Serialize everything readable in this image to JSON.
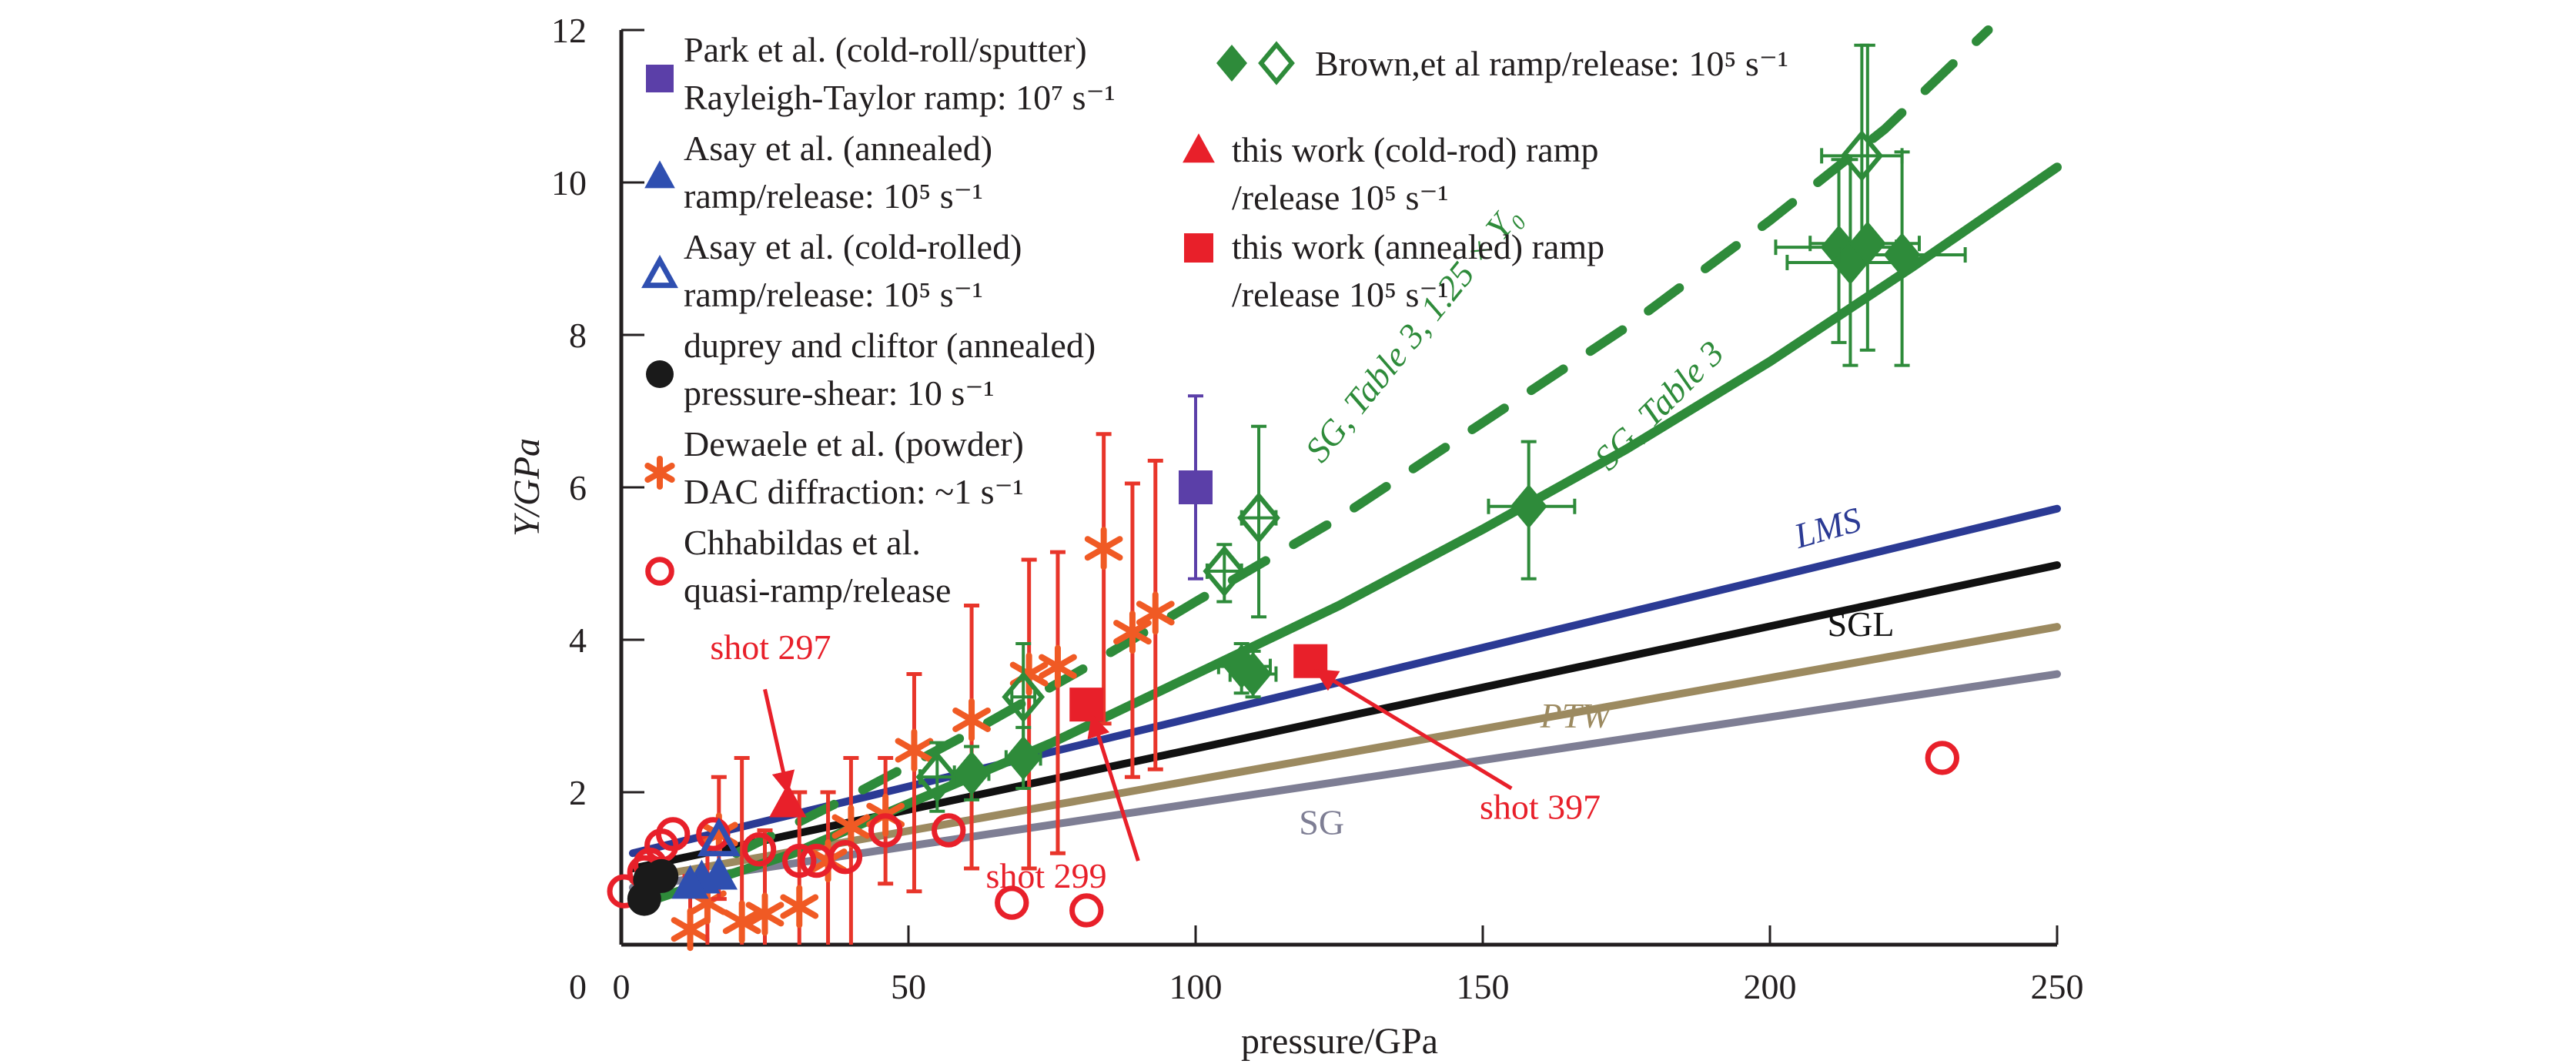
{
  "chart_data": {
    "type": "scatter",
    "title": "",
    "xlabel": "pressure/GPa",
    "ylabel": "Y/GPa",
    "xlim": [
      0,
      250
    ],
    "ylim": [
      0,
      12
    ],
    "xticks": [
      0,
      50,
      100,
      150,
      200,
      250
    ],
    "yticks": [
      0,
      2,
      4,
      6,
      8,
      10,
      12
    ],
    "grid": false,
    "legend_placement": "top-left",
    "legend": [
      {
        "id": "park",
        "marker": "filled-square",
        "color": "#5b3fa8",
        "line1": "Park et al. (cold-roll/sputter)",
        "line2": "Rayleigh-Taylor ramp: 10⁷ s⁻¹"
      },
      {
        "id": "asay_annealed",
        "marker": "filled-triangle",
        "color": "#2f4fb0",
        "line1": "Asay et al. (annealed)",
        "line2": "ramp/release: 10⁵ s⁻¹"
      },
      {
        "id": "asay_cold",
        "marker": "open-triangle",
        "color": "#2f4fb0",
        "line1": "Asay et al. (cold-rolled)",
        "line2": "ramp/release: 10⁵ s⁻¹"
      },
      {
        "id": "duprey",
        "marker": "filled-circle",
        "color": "#1a1a1a",
        "line1": "duprey and cliftor (annealed)",
        "line2": "pressure-shear: 10 s⁻¹"
      },
      {
        "id": "dewaele",
        "marker": "asterisk",
        "color": "#f05a24",
        "line1": "Dewaele et al. (powder)",
        "line2": "DAC diffraction: ~1 s⁻¹"
      },
      {
        "id": "chhabildas",
        "marker": "open-circle",
        "color": "#e8202a",
        "line1": "Chhabildas et al.",
        "line2": "quasi-ramp/release"
      },
      {
        "id": "brown",
        "marker": "filled-and-open-diamond",
        "color": "#2e8b3a",
        "line1": "Brown,et al ramp/release: 10⁵ s⁻¹",
        "line2": ""
      },
      {
        "id": "thiswork_cold",
        "marker": "filled-triangle",
        "color": "#e8202a",
        "line1": "this work (cold-rod) ramp",
        "line2": "/release 10⁵ s⁻¹"
      },
      {
        "id": "thiswork_annealed",
        "marker": "filled-square",
        "color": "#e8202a",
        "line1": "this work (annealed) ramp",
        "line2": "/release 10⁵ s⁻¹"
      }
    ],
    "curves": [
      {
        "name": "LMS",
        "label": "LMS",
        "color": "#2b3a94",
        "style": "solid",
        "x": [
          2,
          250
        ],
        "y": [
          1.2,
          5.72
        ],
        "label_at": [
          205,
          5.2
        ]
      },
      {
        "name": "SGL",
        "label": "SGL",
        "color": "#111111",
        "style": "solid",
        "x": [
          2,
          250
        ],
        "y": [
          1.0,
          4.98
        ],
        "label_at": [
          210,
          4.05
        ]
      },
      {
        "name": "PTW",
        "label": "PTW",
        "color": "#9c8a60",
        "style": "solid",
        "x": [
          2,
          250
        ],
        "y": [
          0.85,
          4.17
        ],
        "label_at": [
          160,
          2.85
        ]
      },
      {
        "name": "SG",
        "label": "SG",
        "color": "#7e7e94",
        "style": "solid",
        "x": [
          2,
          250
        ],
        "y": [
          0.75,
          3.55
        ],
        "label_at": [
          118,
          1.45
        ]
      },
      {
        "name": "SG, Table 3",
        "label": "SG, Table 3",
        "color": "#2e8b3a",
        "style": "solid",
        "x": [
          6,
          30,
          50,
          75,
          100,
          125,
          150,
          175,
          200,
          225,
          250
        ],
        "y": [
          0.6,
          1.2,
          1.85,
          2.65,
          3.55,
          4.45,
          5.45,
          6.5,
          7.65,
          8.9,
          10.2
        ],
        "label_at": [
          172,
          6.2
        ]
      },
      {
        "name": "SG, Table 3, 1.25 x Y0",
        "label": "SG, Table 3, 1.25 × Y₀",
        "color": "#2e8b3a",
        "style": "dashed",
        "x": [
          20,
          40,
          60,
          80,
          100,
          125,
          150,
          175,
          200,
          220,
          238
        ],
        "y": [
          1.2,
          1.95,
          2.75,
          3.6,
          4.5,
          5.6,
          6.85,
          8.1,
          9.5,
          10.7,
          12.0
        ],
        "label_at": [
          122,
          6.3
        ]
      }
    ],
    "series": [
      {
        "name": "Park et al.",
        "id": "park",
        "points": [
          {
            "x": 100,
            "y": 6.0,
            "ylo": 4.8,
            "yhi": 7.2
          }
        ]
      },
      {
        "name": "Asay et al. (annealed)",
        "id": "asay_annealed",
        "points": [
          {
            "x": 14,
            "y": 0.85
          },
          {
            "x": 17,
            "y": 0.9
          },
          {
            "x": 12,
            "y": 0.78
          }
        ]
      },
      {
        "name": "Asay et al. (cold-rolled)",
        "id": "asay_cold",
        "points": [
          {
            "x": 17,
            "y": 1.35
          }
        ]
      },
      {
        "name": "duprey and cliftor",
        "id": "duprey",
        "points": [
          {
            "x": 4,
            "y": 0.6
          },
          {
            "x": 5,
            "y": 0.85
          },
          {
            "x": 7,
            "y": 0.9
          }
        ]
      },
      {
        "name": "Dewaele et al.",
        "id": "dewaele",
        "points": [
          {
            "x": 12,
            "y": 0.2,
            "ylo": 0.0,
            "yhi": 0.9
          },
          {
            "x": 15,
            "y": 0.55,
            "ylo": 0.0,
            "yhi": 1.4
          },
          {
            "x": 17,
            "y": 1.45,
            "ylo": 0.6,
            "yhi": 2.2
          },
          {
            "x": 21,
            "y": 0.3,
            "ylo": 0.0,
            "yhi": 2.45
          },
          {
            "x": 25,
            "y": 0.4,
            "ylo": 0.0,
            "yhi": 1.5
          },
          {
            "x": 31,
            "y": 0.5,
            "ylo": 0.0,
            "yhi": 2.0
          },
          {
            "x": 36,
            "y": 1.1,
            "ylo": 0.0,
            "yhi": 2.0
          },
          {
            "x": 40,
            "y": 1.55,
            "ylo": 0.0,
            "yhi": 2.45
          },
          {
            "x": 46,
            "y": 1.7,
            "ylo": 0.8,
            "yhi": 2.45
          },
          {
            "x": 51,
            "y": 2.55,
            "ylo": 0.7,
            "yhi": 3.55
          },
          {
            "x": 61,
            "y": 2.95,
            "ylo": 1.0,
            "yhi": 4.45
          },
          {
            "x": 71,
            "y": 3.55,
            "ylo": 1.0,
            "yhi": 5.05
          },
          {
            "x": 76,
            "y": 3.65,
            "ylo": 1.2,
            "yhi": 5.15
          },
          {
            "x": 84,
            "y": 5.2,
            "ylo": 2.9,
            "yhi": 6.7
          },
          {
            "x": 89,
            "y": 4.1,
            "ylo": 2.2,
            "yhi": 6.05
          },
          {
            "x": 93,
            "y": 4.35,
            "ylo": 2.3,
            "yhi": 6.35
          }
        ]
      },
      {
        "name": "Chhabildas et al.",
        "id": "chhabildas",
        "points": [
          {
            "x": 0.5,
            "y": 0.7
          },
          {
            "x": 4,
            "y": 0.95
          },
          {
            "x": 5,
            "y": 1.05
          },
          {
            "x": 7,
            "y": 1.3
          },
          {
            "x": 9,
            "y": 1.45
          },
          {
            "x": 16,
            "y": 1.45
          },
          {
            "x": 24,
            "y": 1.25
          },
          {
            "x": 31,
            "y": 1.1
          },
          {
            "x": 34,
            "y": 1.1
          },
          {
            "x": 39,
            "y": 1.15
          },
          {
            "x": 46,
            "y": 1.5
          },
          {
            "x": 57,
            "y": 1.5
          },
          {
            "x": 68,
            "y": 0.55
          },
          {
            "x": 81,
            "y": 0.45
          },
          {
            "x": 230,
            "y": 2.45
          }
        ]
      },
      {
        "name": "Brown et al. (filled)",
        "id": "brown_filled",
        "points": [
          {
            "x": 61,
            "y": 2.25,
            "xlo": 58,
            "xhi": 64,
            "ylo": 1.9,
            "yhi": 2.6
          },
          {
            "x": 70,
            "y": 2.45,
            "xlo": 67,
            "xhi": 73,
            "ylo": 2.05,
            "yhi": 2.85
          },
          {
            "x": 108,
            "y": 3.65,
            "xlo": 104,
            "xhi": 113,
            "ylo": 3.3,
            "yhi": 3.95
          },
          {
            "x": 110,
            "y": 3.55,
            "xlo": 106,
            "xhi": 114,
            "ylo": 3.25,
            "yhi": 3.85
          },
          {
            "x": 158,
            "y": 5.75,
            "xlo": 151,
            "xhi": 166,
            "ylo": 4.8,
            "yhi": 6.6
          },
          {
            "x": 212,
            "y": 9.15,
            "xlo": 201,
            "xhi": 222,
            "ylo": 7.9,
            "yhi": 10.3
          },
          {
            "x": 214,
            "y": 8.95,
            "xlo": 203,
            "xhi": 224,
            "ylo": 7.6,
            "yhi": 10.3
          },
          {
            "x": 217,
            "y": 9.2,
            "xlo": 207,
            "xhi": 226,
            "ylo": 7.8,
            "yhi": 11.8
          },
          {
            "x": 223,
            "y": 9.05,
            "xlo": 212,
            "xhi": 234,
            "ylo": 7.6,
            "yhi": 10.4
          }
        ]
      },
      {
        "name": "Brown et al. (open)",
        "id": "brown_open",
        "points": [
          {
            "x": 55,
            "y": 2.2,
            "xlo": 52,
            "xhi": 58,
            "ylo": 1.75,
            "yhi": 2.65
          },
          {
            "x": 70,
            "y": 3.25,
            "xlo": 68,
            "xhi": 72,
            "ylo": 2.6,
            "yhi": 3.95
          },
          {
            "x": 105,
            "y": 4.9,
            "xlo": 102,
            "xhi": 108,
            "ylo": 4.5,
            "yhi": 5.25
          },
          {
            "x": 111,
            "y": 5.6,
            "xlo": 108,
            "xhi": 114,
            "ylo": 4.3,
            "yhi": 6.8
          },
          {
            "x": 216,
            "y": 10.35,
            "xlo": 209,
            "xhi": 223,
            "ylo": 9.0,
            "yhi": 11.8
          }
        ]
      },
      {
        "name": "this work (cold-rod)",
        "id": "thiswork_cold",
        "points": [
          {
            "x": 29,
            "y": 1.85
          }
        ]
      },
      {
        "name": "this work (annealed)",
        "id": "thiswork_annealed",
        "points": [
          {
            "x": 81,
            "y": 3.15
          },
          {
            "x": 120,
            "y": 3.72
          }
        ]
      }
    ],
    "annotations": [
      {
        "id": "shot297",
        "text": "shot 297",
        "color": "#e8202a",
        "text_at": [
          26,
          3.75
        ],
        "arrow_from": [
          25,
          3.35
        ],
        "arrow_to": [
          29,
          2.0
        ]
      },
      {
        "id": "shot299",
        "text": "shot 299",
        "color": "#e8202a",
        "text_at": [
          74,
          0.75
        ],
        "arrow_from": [
          90,
          1.1
        ],
        "arrow_to": [
          82,
          3.0
        ]
      },
      {
        "id": "shot397",
        "text": "shot 397",
        "color": "#e8202a",
        "text_at": [
          160,
          1.65
        ],
        "arrow_from": [
          155,
          2.05
        ],
        "arrow_to": [
          121,
          3.6
        ]
      }
    ]
  }
}
